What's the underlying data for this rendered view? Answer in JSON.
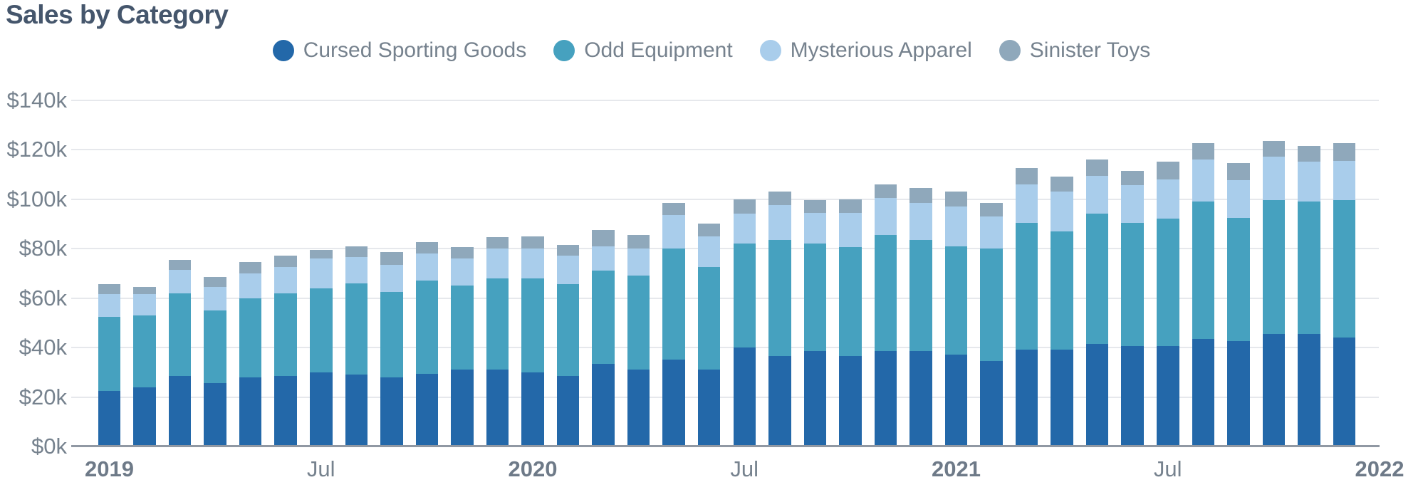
{
  "title": "Sales by Category",
  "colors": {
    "background": "#ffffff",
    "title_text": "#45566c",
    "axis_text": "#76828e",
    "gridline": "#e6e8ec",
    "axis_line": "#9098a3"
  },
  "legend": {
    "items": [
      {
        "label": "Cursed Sporting Goods",
        "color": "#2368a9"
      },
      {
        "label": "Odd Equipment",
        "color": "#46a1bf"
      },
      {
        "label": "Mysterious Apparel",
        "color": "#a9cdeb"
      },
      {
        "label": "Sinister Toys",
        "color": "#8fa8bb"
      }
    ]
  },
  "chart_data": {
    "type": "bar",
    "stacked": true,
    "title": "Sales by Category",
    "unit": "USD thousands",
    "ylim": [
      0,
      140
    ],
    "grid": true,
    "legend_position": "top-center",
    "categories": [
      "Jan 2019",
      "Feb 2019",
      "Mar 2019",
      "Apr 2019",
      "May 2019",
      "Jun 2019",
      "Jul 2019",
      "Aug 2019",
      "Sep 2019",
      "Oct 2019",
      "Nov 2019",
      "Dec 2019",
      "Jan 2020",
      "Feb 2020",
      "Mar 2020",
      "Apr 2020",
      "May 2020",
      "Jun 2020",
      "Jul 2020",
      "Aug 2020",
      "Sep 2020",
      "Oct 2020",
      "Nov 2020",
      "Dec 2020",
      "Jan 2021",
      "Feb 2021",
      "Mar 2021",
      "Apr 2021",
      "May 2021",
      "Jun 2021",
      "Jul 2021",
      "Aug 2021",
      "Sep 2021",
      "Oct 2021",
      "Nov 2021",
      "Dec 2021"
    ],
    "series": [
      {
        "name": "Cursed Sporting Goods",
        "color": "#2368a9",
        "values": [
          22.5,
          24,
          28.5,
          25.5,
          28,
          28.5,
          30,
          29,
          28,
          29.5,
          31,
          31,
          30,
          28.5,
          33.5,
          31,
          35,
          31,
          40,
          36.5,
          38.5,
          36.5,
          38.5,
          38.5,
          37,
          34.5,
          39,
          39,
          41.5,
          40.5,
          40.5,
          43.5,
          42.5,
          45.5,
          45.5,
          44
        ]
      },
      {
        "name": "Odd Equipment",
        "color": "#46a1bf",
        "values": [
          30,
          29,
          33.5,
          29.5,
          32,
          33.5,
          34,
          37,
          34.5,
          37.5,
          34,
          37,
          38,
          37,
          37.5,
          38,
          45,
          41.5,
          42,
          47,
          43.5,
          44,
          47,
          45,
          44,
          45.5,
          51.5,
          48,
          52.5,
          50,
          51.5,
          55.5,
          50,
          54,
          53.5,
          55.5
        ]
      },
      {
        "name": "Mysterious Apparel",
        "color": "#a9cdeb",
        "values": [
          9,
          8.5,
          9.5,
          9.5,
          10,
          10.5,
          12,
          10.5,
          11,
          11,
          11,
          12,
          12,
          11.5,
          10,
          11,
          13.5,
          12.5,
          12,
          14,
          12.5,
          14,
          15,
          15,
          16,
          13,
          15.5,
          16,
          15.5,
          15,
          16,
          17,
          15,
          17.5,
          16,
          16
        ]
      },
      {
        "name": "Sinister Toys",
        "color": "#8fa8bb",
        "values": [
          4,
          3,
          4,
          4,
          4.5,
          4.5,
          3.5,
          4.5,
          5,
          4.5,
          4.5,
          4.5,
          5,
          4.5,
          6.5,
          5.5,
          5,
          5,
          6,
          5.5,
          5,
          5.5,
          5.5,
          6,
          6,
          5.5,
          6.5,
          6,
          6.5,
          6,
          7,
          6.5,
          7,
          6.5,
          6.5,
          7
        ]
      }
    ],
    "y_axis": {
      "tick_values": [
        0,
        20,
        40,
        60,
        80,
        100,
        120,
        140
      ],
      "tick_labels": [
        "$0k",
        "$20k",
        "$40k",
        "$60k",
        "$80k",
        "$100k",
        "$120k",
        "$140k"
      ]
    },
    "x_axis": {
      "ticks": [
        {
          "label": "2019",
          "month_index": 0,
          "bold": true
        },
        {
          "label": "Jul",
          "month_index": 6,
          "bold": false
        },
        {
          "label": "2020",
          "month_index": 12,
          "bold": true
        },
        {
          "label": "Jul",
          "month_index": 18,
          "bold": false
        },
        {
          "label": "2021",
          "month_index": 24,
          "bold": true
        },
        {
          "label": "Jul",
          "month_index": 30,
          "bold": false
        },
        {
          "label": "2022",
          "month_index": 36,
          "bold": true
        }
      ]
    }
  }
}
